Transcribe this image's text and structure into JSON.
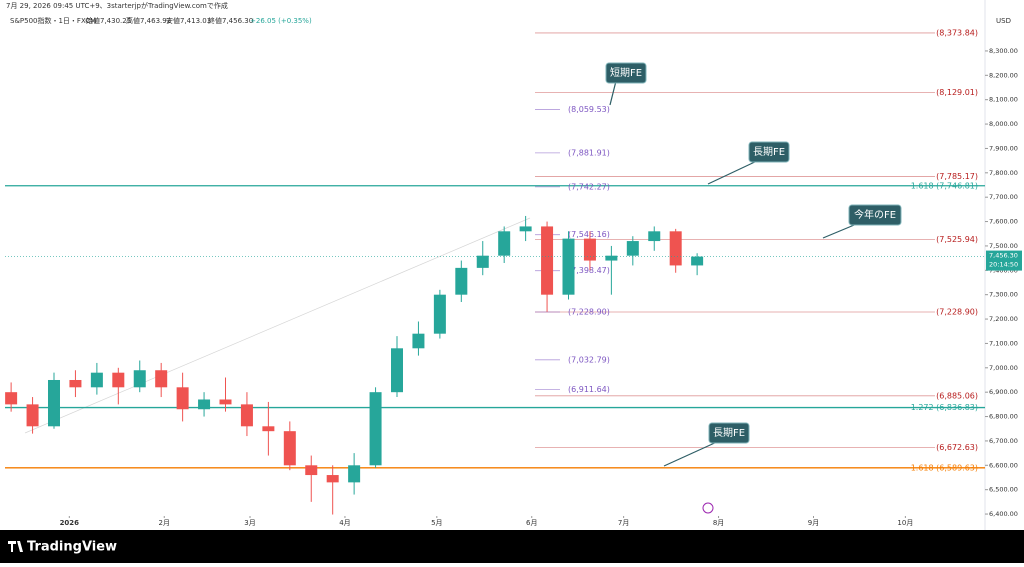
{
  "header": {
    "created": "7月 29, 2026 09:45 UTC+9、3starterjpがTradingView.comで作成",
    "symbol": "S&P500指数・1日・FXCM",
    "ohlc": [
      "始値7,430.25",
      "高値7,463.92",
      "安値7,413.03",
      "終値7,456.30"
    ],
    "change": "+26.05 (+0.35%)"
  },
  "chart_data": {
    "type": "candlestick",
    "x": [
      -19,
      -12,
      -5,
      2,
      9,
      16,
      23,
      30,
      37,
      44,
      51,
      58,
      65,
      72,
      79,
      86,
      93,
      100,
      107,
      114,
      121,
      128,
      135,
      142,
      149,
      156,
      163,
      170,
      177,
      184,
      191,
      198,
      205
    ],
    "open": [
      6900,
      6850,
      6760,
      6950,
      6920,
      6980,
      6920,
      6990,
      6920,
      6830,
      6870,
      6850,
      6760,
      6740,
      6600,
      6560,
      6530,
      6600,
      6900,
      7080,
      7140,
      7300,
      7410,
      7460,
      7560,
      7580,
      7300,
      7530,
      7440,
      7460,
      7520,
      7560,
      7420
    ],
    "high": [
      6940,
      6880,
      6980,
      6990,
      7020,
      7000,
      7030,
      7020,
      6980,
      6900,
      6960,
      6900,
      6860,
      6780,
      6640,
      6600,
      6650,
      6920,
      7130,
      7190,
      7320,
      7440,
      7520,
      7580,
      7623,
      7600,
      7560,
      7560,
      7500,
      7540,
      7580,
      7570,
      7470
    ],
    "low": [
      6820,
      6730,
      6750,
      6880,
      6890,
      6850,
      6900,
      6880,
      6780,
      6800,
      6820,
      6720,
      6640,
      6580,
      6450,
      6398,
      6480,
      6590,
      6880,
      7050,
      7120,
      7270,
      7380,
      7430,
      7520,
      7230,
      7280,
      7400,
      7300,
      7420,
      7480,
      7390,
      7380
    ],
    "close": [
      6850,
      6760,
      6950,
      6920,
      6980,
      6920,
      6990,
      6920,
      6830,
      6870,
      6850,
      6760,
      6740,
      6600,
      6560,
      6530,
      6600,
      6900,
      7080,
      7140,
      7300,
      7410,
      7460,
      7560,
      7580,
      7300,
      7530,
      7440,
      7460,
      7520,
      7560,
      7420,
      7456.3
    ],
    "up_color": "#26a69a",
    "down_color": "#ef5350",
    "xlim": [
      -21,
      299
    ],
    "xticks": [
      {
        "value": 0,
        "label": "2026"
      },
      {
        "value": 31,
        "label": "2月"
      },
      {
        "value": 59,
        "label": "3月"
      },
      {
        "value": 90,
        "label": "4月"
      },
      {
        "value": 120,
        "label": "5月"
      },
      {
        "value": 151,
        "label": "6月"
      },
      {
        "value": 181,
        "label": "7月"
      },
      {
        "value": 212,
        "label": "8月"
      },
      {
        "value": 243,
        "label": "9月"
      },
      {
        "value": 273,
        "label": "10月"
      }
    ],
    "ylim": [
      6392,
      8509
    ],
    "yticks": [
      {
        "value": 6400,
        "label": "6,400.00"
      },
      {
        "value": 6500,
        "label": "6,500.00"
      },
      {
        "value": 6600,
        "label": "6,600.00"
      },
      {
        "value": 6700,
        "label": "6,700.00"
      },
      {
        "value": 6800,
        "label": "6,800.00"
      },
      {
        "value": 6900,
        "label": "6,900.00"
      },
      {
        "value": 7000,
        "label": "7,000.00"
      },
      {
        "value": 7100,
        "label": "7,100.00"
      },
      {
        "value": 7200,
        "label": "7,200.00"
      },
      {
        "value": 7300,
        "label": "7,300.00"
      },
      {
        "value": 7400,
        "label": "7,400.00"
      },
      {
        "value": 7500,
        "label": "7,500.00"
      },
      {
        "value": 7600,
        "label": "7,600.00"
      },
      {
        "value": 7700,
        "label": "7,700.00"
      },
      {
        "value": 7800,
        "label": "7,800.00"
      },
      {
        "value": 7900,
        "label": "7,900.00"
      },
      {
        "value": 8000,
        "label": "8,000.00"
      },
      {
        "value": 8100,
        "label": "8,100.00"
      },
      {
        "value": 8200,
        "label": "8,200.00"
      },
      {
        "value": 8300,
        "label": "8,300.00"
      }
    ],
    "currency": "USD",
    "last_price": {
      "value": 7456.3,
      "label": "7,456.30"
    },
    "countdown": "20:14:50",
    "levels": [
      {
        "value": 7746.81,
        "label": "1.618 (7,746.81)",
        "color": "#26a69a",
        "kind": "full"
      },
      {
        "value": 6836.83,
        "label": "1.272 (6,836.83)",
        "color": "#26a69a",
        "kind": "full"
      },
      {
        "value": 6589.63,
        "label": "1.618 (6,589.63)",
        "color": "#f57c00",
        "kind": "full"
      },
      {
        "value": 8373.84,
        "label": "(8,373.84)",
        "color": "#b71c1c",
        "kind": "long"
      },
      {
        "value": 8129.01,
        "label": "(8,129.01)",
        "color": "#b71c1c",
        "kind": "long"
      },
      {
        "value": 7785.17,
        "label": "(7,785.17)",
        "color": "#b71c1c",
        "kind": "long"
      },
      {
        "value": 7525.94,
        "label": "(7,525.94)",
        "color": "#b71c1c",
        "kind": "long"
      },
      {
        "value": 7228.9,
        "label": "(7,228.90)",
        "color": "#b71c1c",
        "kind": "long"
      },
      {
        "value": 6885.06,
        "label": "(6,885.06)",
        "color": "#b71c1c",
        "kind": "long"
      },
      {
        "value": 6672.63,
        "label": "(6,672.63)",
        "color": "#b71c1c",
        "kind": "long"
      },
      {
        "value": 8059.53,
        "label": "(8,059.53)",
        "color": "#7e57c2",
        "kind": "short"
      },
      {
        "value": 7881.91,
        "label": "(7,881.91)",
        "color": "#7e57c2",
        "kind": "short"
      },
      {
        "value": 7742.27,
        "label": "(7,742.27)",
        "color": "#7e57c2",
        "kind": "short"
      },
      {
        "value": 7546.16,
        "label": "(7,546.16)",
        "color": "#7e57c2",
        "kind": "short"
      },
      {
        "value": 7398.47,
        "label": "(7,398.47)",
        "color": "#7e57c2",
        "kind": "short"
      },
      {
        "value": 7228.9,
        "label": "(7,228.90)",
        "color": "#7e57c2",
        "kind": "short"
      },
      {
        "value": 7032.79,
        "label": "(7,032.79)",
        "color": "#7e57c2",
        "kind": "short"
      },
      {
        "value": 6911.64,
        "label": "(6,911.64)",
        "color": "#7e57c2",
        "kind": "short"
      }
    ],
    "annotations": [
      "短期FE",
      "長期FE",
      "今年のFE",
      "長期FE"
    ]
  },
  "footer": {
    "brand": "TradingView"
  }
}
